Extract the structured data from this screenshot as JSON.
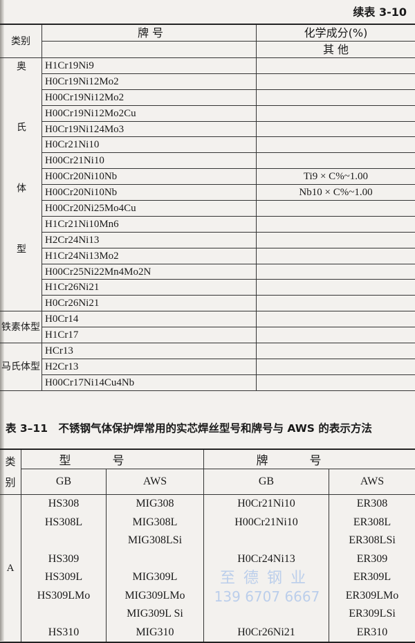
{
  "table1": {
    "continued_title": "续表 3-10",
    "header": {
      "category": "类别",
      "brand": "牌 号",
      "chem": "化学成分(%)",
      "other": "其 他"
    },
    "groups": [
      {
        "category": "奥氏体型",
        "rows": [
          {
            "brand": "H1Cr19Ni9",
            "other": ""
          },
          {
            "brand": "H0Cr19Ni12Mo2",
            "other": ""
          },
          {
            "brand": "H00Cr19Ni12Mo2",
            "other": ""
          },
          {
            "brand": "H00Cr19Ni12Mo2Cu",
            "other": ""
          },
          {
            "brand": "H0Cr19Ni124Mo3",
            "other": ""
          },
          {
            "brand": "H0Cr21Ni10",
            "other": ""
          },
          {
            "brand": "H00Cr21Ni10",
            "other": ""
          },
          {
            "brand": "H00Cr20Ni10Nb",
            "other": "Ti9 × C%~1.00"
          },
          {
            "brand": "H00Cr20Ni10Nb",
            "other": "Nb10 × C%~1.00"
          },
          {
            "brand": "H00Cr20Ni25Mo4Cu",
            "other": ""
          },
          {
            "brand": "H1Cr21Ni10Mn6",
            "other": ""
          },
          {
            "brand": "H2Cr24Ni13",
            "other": ""
          },
          {
            "brand": "H1Cr24Ni13Mo2",
            "other": ""
          },
          {
            "brand": "H00Cr25Ni22Mn4Mo2N",
            "other": ""
          },
          {
            "brand": "H1Cr26Ni21",
            "other": ""
          },
          {
            "brand": "H0Cr26Ni21",
            "other": ""
          }
        ]
      },
      {
        "category": "铁素体型",
        "rows": [
          {
            "brand": "H0Cr14",
            "other": ""
          },
          {
            "brand": "H1Cr17",
            "other": ""
          }
        ]
      },
      {
        "category": "马氏体型",
        "rows": [
          {
            "brand": "HCr13",
            "other": ""
          },
          {
            "brand": "H2Cr13",
            "other": ""
          },
          {
            "brand": "H00Cr17Ni14Cu4Nb",
            "other": ""
          }
        ]
      }
    ]
  },
  "table2": {
    "caption": "表 3–11　不锈钢气体保护焊常用的实芯焊丝型号和牌号与 AWS 的表示方法",
    "header": {
      "category": "类别",
      "model": "型号",
      "brand": "牌号",
      "gb": "GB",
      "aws": "AWS"
    },
    "category": "A",
    "rows": [
      [
        "HS308",
        "MIG308",
        "H0Cr21Ni10",
        "ER308"
      ],
      [
        "HS308L",
        "MIG308L",
        "H00Cr21Ni10",
        "ER308L"
      ],
      [
        "",
        "MIG308LSi",
        "",
        "ER308LSi"
      ],
      [
        "HS309",
        "",
        "H0Cr24Ni13",
        "ER309"
      ],
      [
        "HS309L",
        "MIG309L",
        "",
        "ER309L"
      ],
      [
        "HS309LMo",
        "MIG309LMo",
        "",
        "ER309LMo"
      ],
      [
        "",
        "MIG309L Si",
        "",
        "ER309LSi"
      ],
      [
        "HS310",
        "MIG310",
        "H0Cr26Ni21",
        "ER310"
      ]
    ]
  },
  "watermark": {
    "line1": "至德钢业",
    "line2": "139 6707 6667",
    "color": "#a9c3ea"
  }
}
